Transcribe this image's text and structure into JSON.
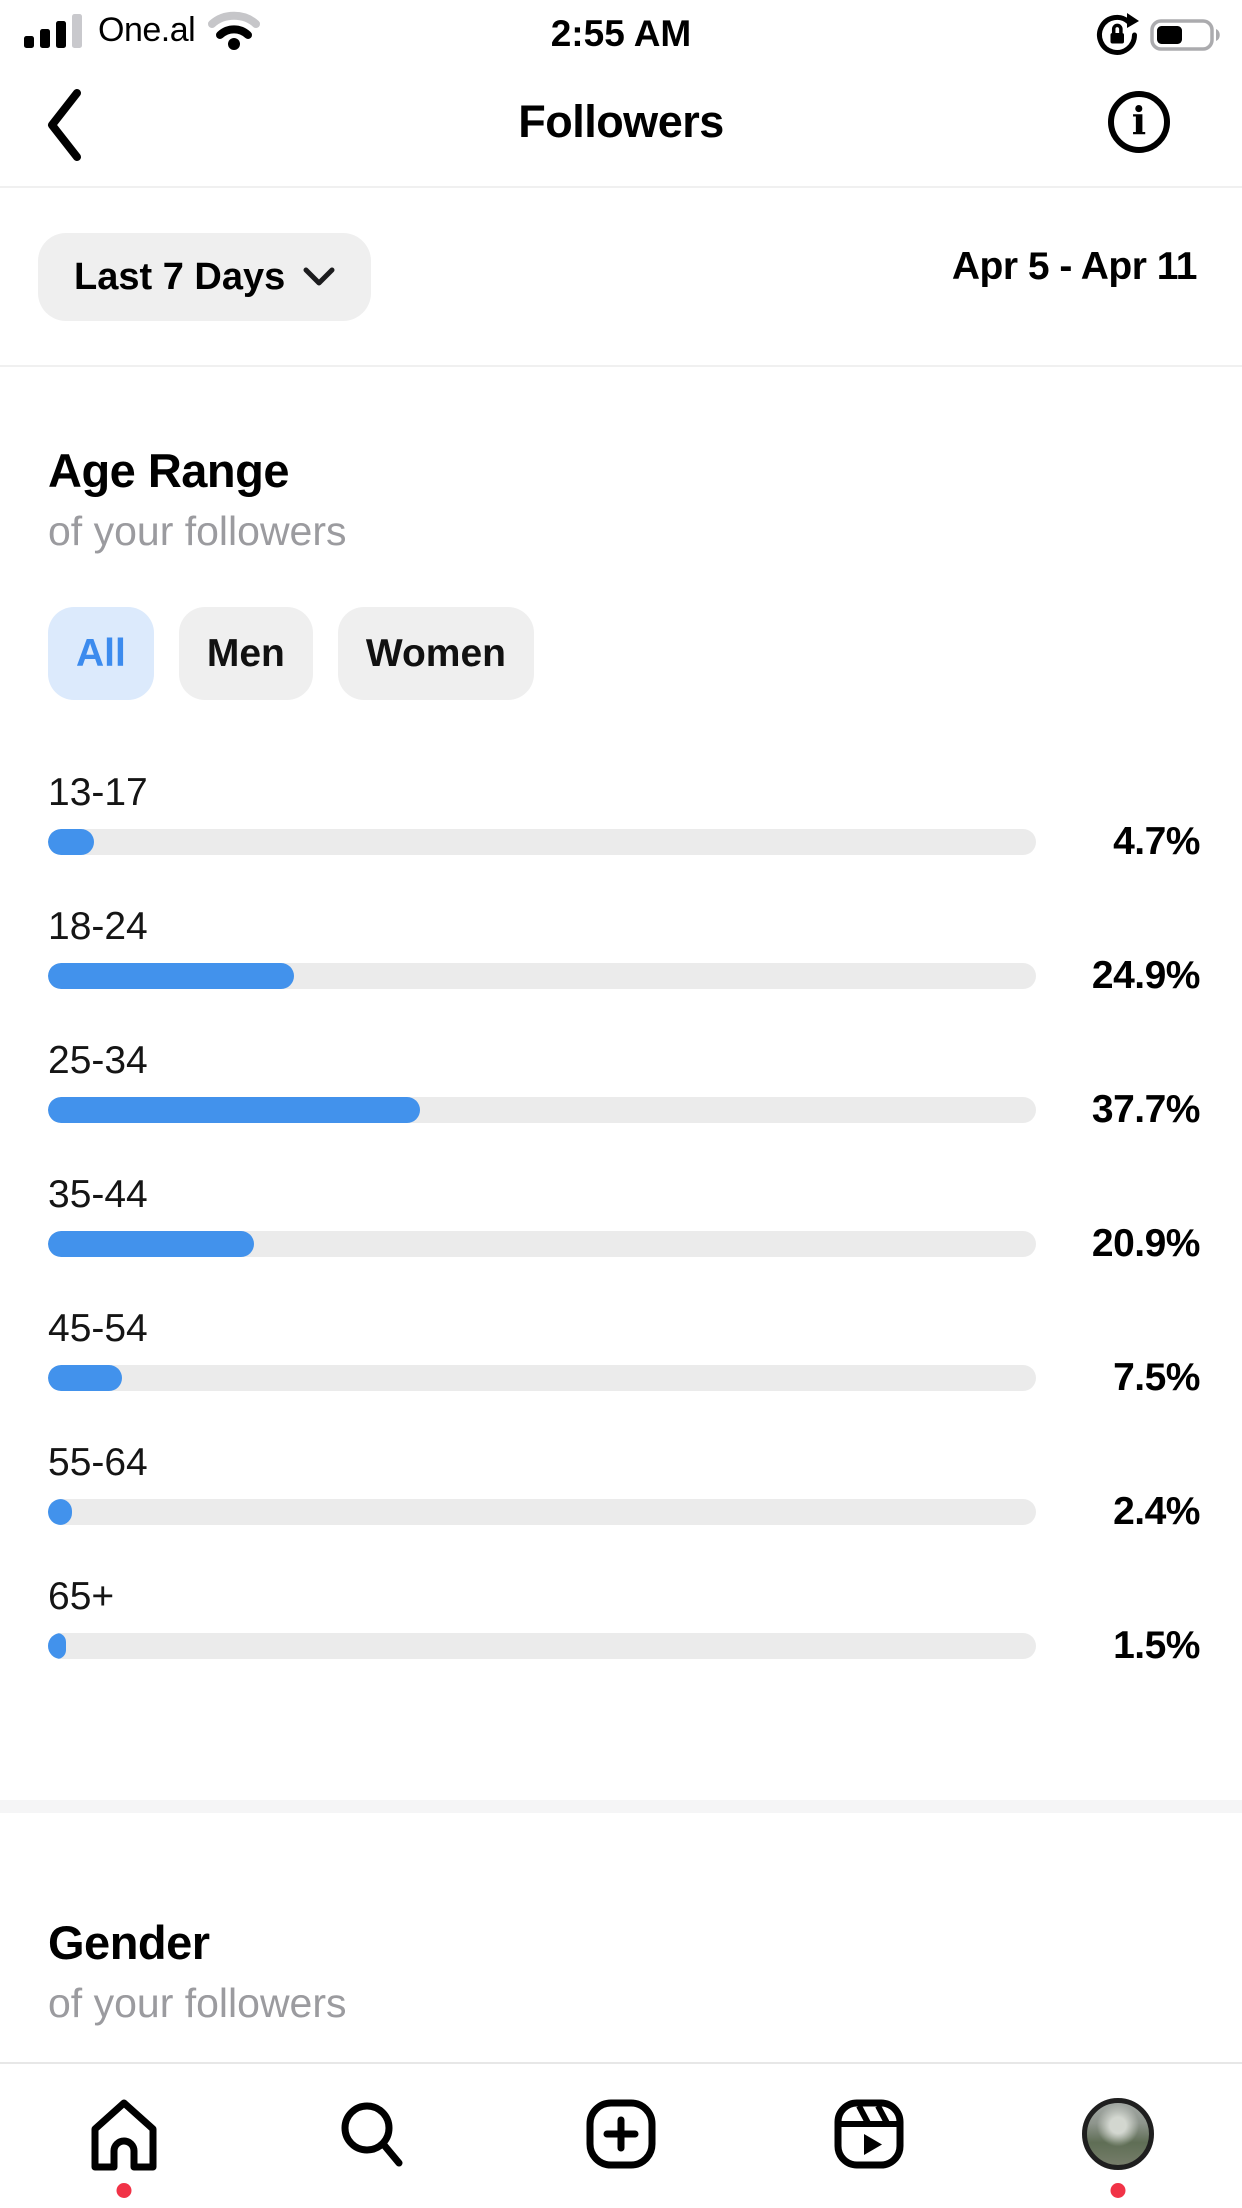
{
  "colors": {
    "accent_blue": "#4292EC",
    "bar_track": "#EBEBEB",
    "pill_bg": "#EFEFEF",
    "tab_selected_bg": "#DCEAFC",
    "tab_selected_text": "#3C8BEE",
    "subtitle_gray": "#9B9B9F",
    "badge_red": "#F13347",
    "divider_band": "#F5F5F6"
  },
  "status_bar": {
    "carrier": "One.al",
    "time": "2:55 AM",
    "signal_icon": "cellular-signal-3-of-4",
    "wifi_icon": "wifi-2-of-3",
    "rotation_lock_icon": "rotation-lock",
    "battery_icon": "battery",
    "battery_level_percent": 45
  },
  "header": {
    "title": "Followers",
    "back_icon": "chevron-left",
    "info_icon": "info-circle",
    "info_icon_glyph": "i"
  },
  "filter": {
    "period_label": "Last 7 Days",
    "period_icon": "chevron-down",
    "date_range": "Apr 5 - Apr 11"
  },
  "age_section": {
    "title": "Age Range",
    "subtitle": "of your followers",
    "tabs": [
      {
        "label": "All",
        "selected": true
      },
      {
        "label": "Men",
        "selected": false
      },
      {
        "label": "Women",
        "selected": false
      }
    ]
  },
  "chart_data": {
    "type": "bar",
    "orientation": "horizontal",
    "title": "Age Range",
    "subtitle": "of your followers",
    "categories": [
      "13-17",
      "18-24",
      "25-34",
      "35-44",
      "45-54",
      "55-64",
      "65+"
    ],
    "values": [
      4.7,
      24.9,
      37.7,
      20.9,
      7.5,
      2.4,
      1.5
    ],
    "value_labels": [
      "4.7%",
      "24.9%",
      "37.7%",
      "20.9%",
      "7.5%",
      "2.4%",
      "1.5%"
    ],
    "xlim": [
      0,
      100
    ],
    "bar_color": "#4292EC",
    "track_color": "#EBEBEB",
    "grid": false,
    "legend": false,
    "selected_filter": "All"
  },
  "gender_section": {
    "title": "Gender",
    "subtitle": "of your followers"
  },
  "tab_bar": {
    "items": [
      {
        "name": "home",
        "icon": "home-icon",
        "badge": true
      },
      {
        "name": "search",
        "icon": "search-icon",
        "badge": false
      },
      {
        "name": "create",
        "icon": "create-icon",
        "badge": false
      },
      {
        "name": "reels",
        "icon": "reels-icon",
        "badge": false
      },
      {
        "name": "profile",
        "icon": "profile-avatar",
        "badge": true
      }
    ]
  }
}
